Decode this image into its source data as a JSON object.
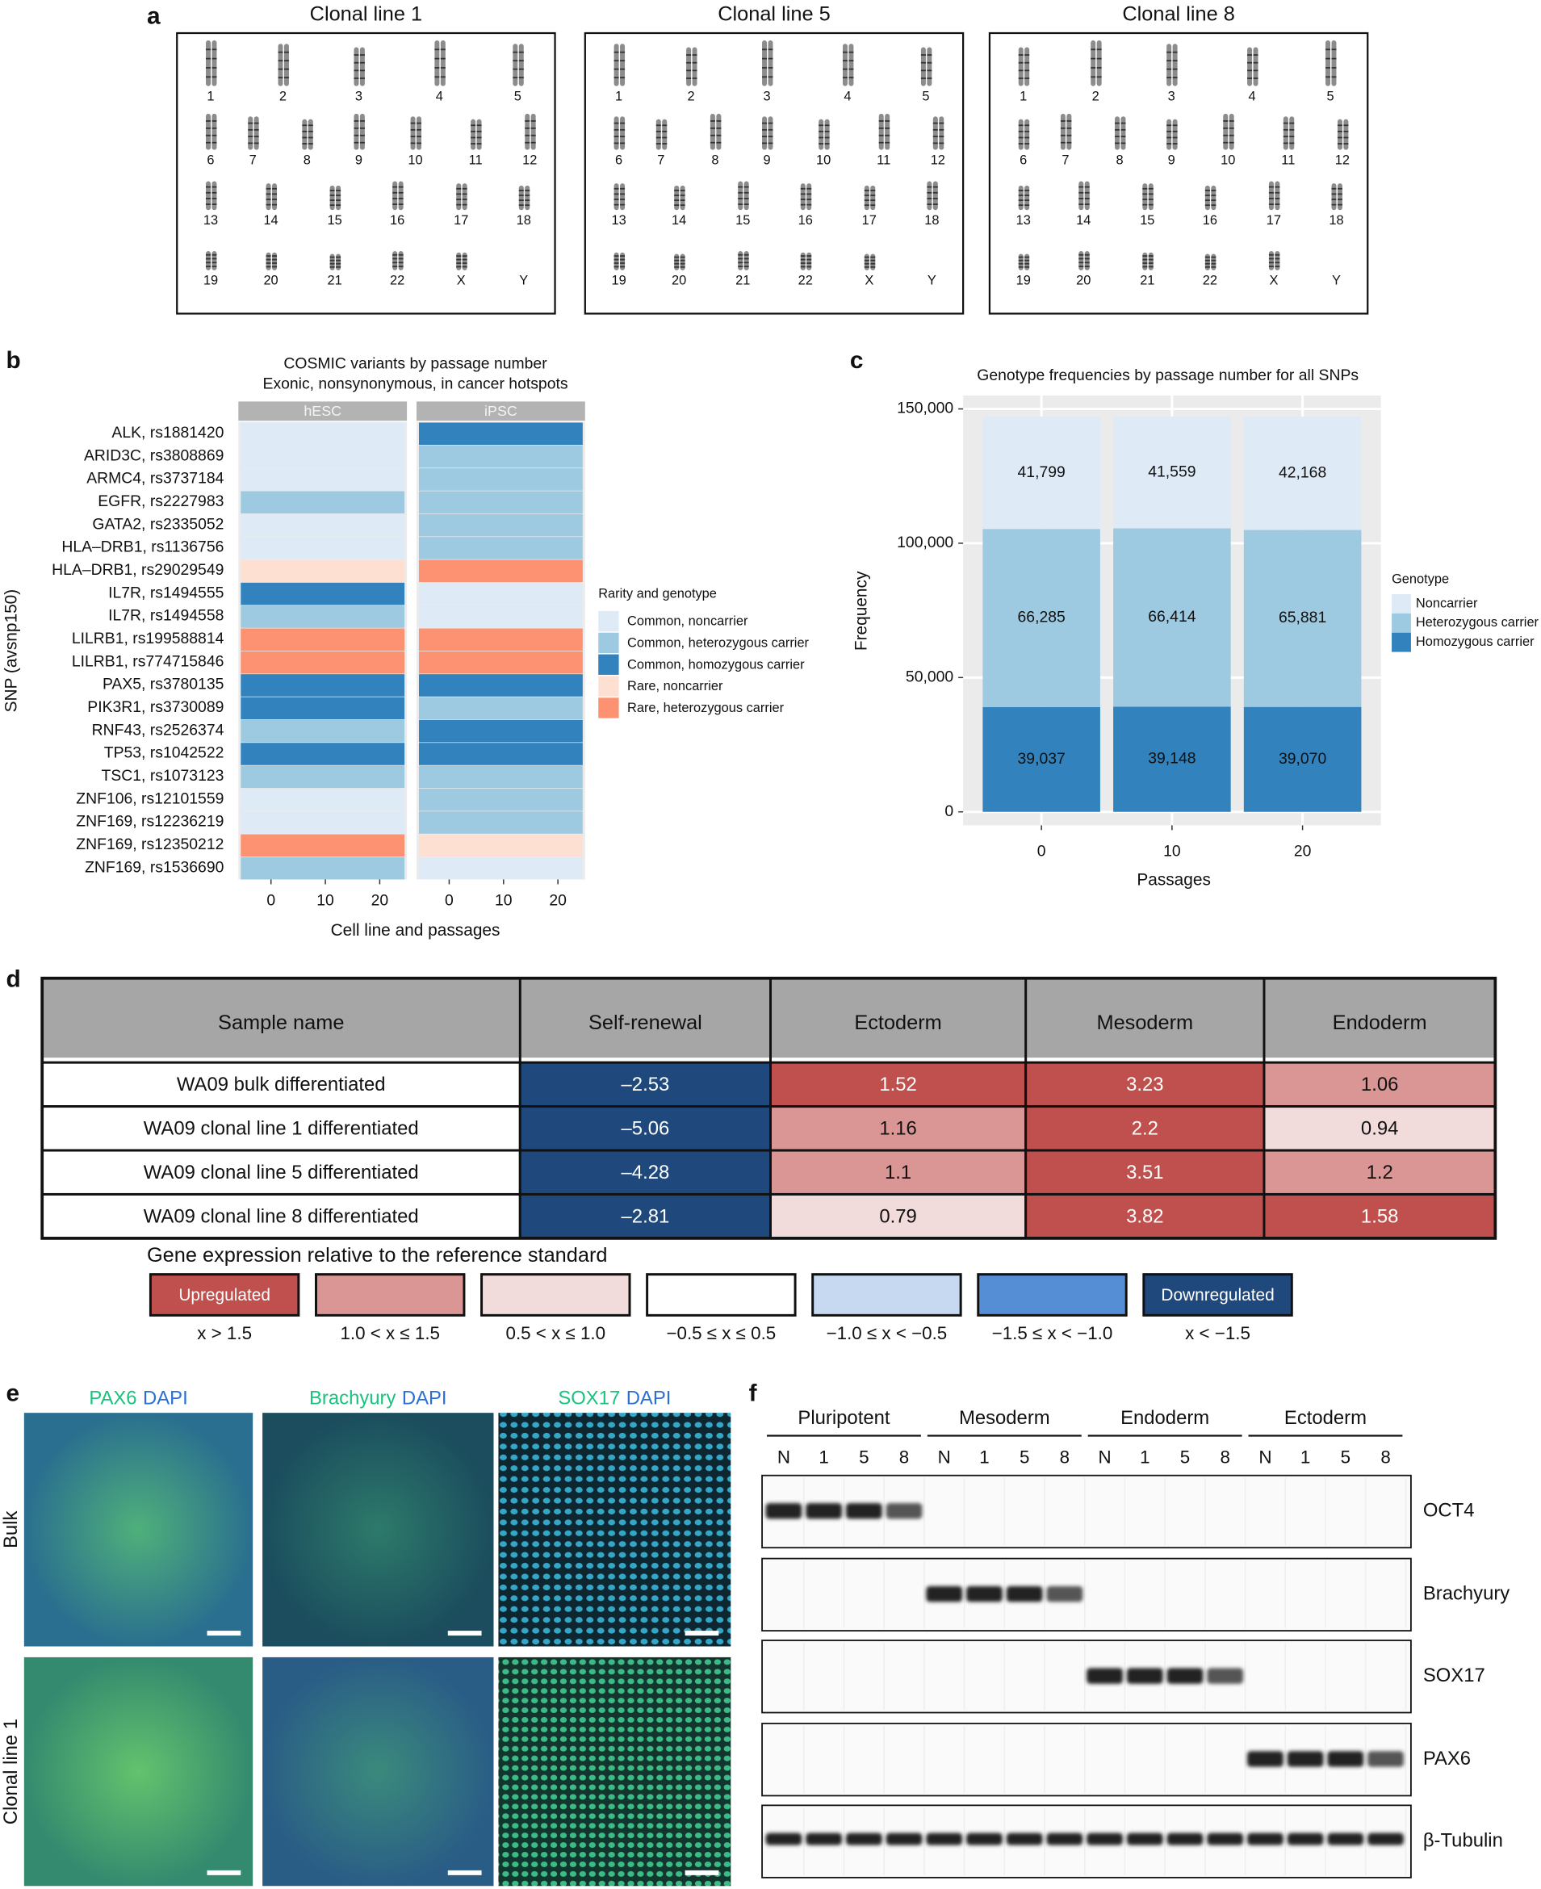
{
  "panel_labels": [
    "a",
    "b",
    "c",
    "d",
    "e",
    "f"
  ],
  "karyotypes": {
    "titles": [
      "Clonal line 1",
      "Clonal line 5",
      "Clonal line 8"
    ],
    "chromosomes": [
      "1",
      "2",
      "3",
      "4",
      "5",
      "6",
      "7",
      "8",
      "9",
      "10",
      "11",
      "12",
      "13",
      "14",
      "15",
      "16",
      "17",
      "18",
      "19",
      "20",
      "21",
      "22",
      "X",
      "Y"
    ]
  },
  "chart_data": [
    {
      "type": "heatmap",
      "title": "COSMIC variants by passage number",
      "subtitle": "Exonic, nonsynonymous, in cancer hotspots",
      "x_label": "Cell line and passages",
      "y_label": "SNP (avsnp150)",
      "categories": [
        "ALK, rs1881420",
        "ARID3C, rs3808869",
        "ARMC4, rs3737184",
        "EGFR, rs2227983",
        "GATA2, rs2335052",
        "HLA–DRB1, rs1136756",
        "HLA–DRB1, rs29029549",
        "IL7R, rs1494555",
        "IL7R, rs1494558",
        "LILRB1, rs199588814",
        "LILRB1, rs774715846",
        "PAX5, rs3780135",
        "PIK3R1, rs3730089",
        "RNF43, rs2526374",
        "TP53, rs1042522",
        "TSC1, rs1073123",
        "ZNF106, rs12101559",
        "ZNF169, rs12236219",
        "ZNF169, rs12350212",
        "ZNF169, rs1536690"
      ],
      "xlim": [
        -6,
        25
      ],
      "xticks": [
        0,
        10,
        20
      ],
      "legend_title": "Rarity and genotype",
      "legend": [
        {
          "name": "Common, noncarrier",
          "color": "#deebf7"
        },
        {
          "name": "Common, heterozygous carrier",
          "color": "#9ecae1"
        },
        {
          "name": "Common, homozygous carrier",
          "color": "#3182bd"
        },
        {
          "name": "Rare, noncarrier",
          "color": "#fde0d2"
        },
        {
          "name": "Rare, heterozygous carrier",
          "color": "#fc9272"
        }
      ],
      "series": [
        {
          "name": "hESC",
          "values": [
            0,
            0,
            0,
            1,
            0,
            0,
            3,
            2,
            1,
            4,
            4,
            2,
            2,
            1,
            2,
            1,
            0,
            0,
            4,
            1
          ]
        },
        {
          "name": "iPSC",
          "values": [
            2,
            1,
            1,
            1,
            1,
            1,
            4,
            0,
            0,
            4,
            4,
            2,
            1,
            2,
            2,
            1,
            1,
            1,
            3,
            0
          ]
        }
      ]
    },
    {
      "type": "stacked_bar",
      "title": "Genotype frequencies by passage number for all SNPs",
      "x_label": "Passages",
      "y_label": "Frequency",
      "categories": [
        "0",
        "10",
        "20"
      ],
      "ylim": [
        -5000,
        155000
      ],
      "yticks": [
        0,
        {
          "value": 50000,
          "label": "50,000"
        },
        {
          "value": 100000,
          "label": "100,000"
        },
        {
          "value": 150000,
          "label": "150,000"
        }
      ],
      "grid": true,
      "legend_title": "Genotype",
      "series": [
        {
          "name": "Noncarrier",
          "color": "#deebf7",
          "values": [
            41799,
            41559,
            42168
          ],
          "value_labels": [
            "41,799",
            "41,559",
            "42,168"
          ]
        },
        {
          "name": "Heterozygous carrier",
          "color": "#9ecae1",
          "values": [
            66285,
            66414,
            65881
          ],
          "value_labels": [
            "66,285",
            "66,414",
            "65,881"
          ]
        },
        {
          "name": "Homozygous carrier",
          "color": "#3182bd",
          "values": [
            39037,
            39148,
            39070
          ],
          "value_labels": [
            "39,037",
            "39,148",
            "39,070"
          ]
        }
      ]
    }
  ],
  "table": {
    "header": [
      "Sample name",
      "Self-renewal",
      "Ectoderm",
      "Mesoderm",
      "Endoderm"
    ],
    "rows": [
      [
        "WA09 bulk differentiated",
        "–2.53",
        "1.52",
        "3.23",
        "1.06"
      ],
      [
        "WA09 clonal line 1 differentiated",
        "–5.06",
        "1.16",
        "2.2",
        "0.94"
      ],
      [
        "WA09 clonal line 5 differentiated",
        "–4.28",
        "1.1",
        "3.51",
        "1.2"
      ],
      [
        "WA09 clonal line 8 differentiated",
        "–2.81",
        "0.79",
        "3.82",
        "1.58"
      ]
    ],
    "cell_levels": [
      [
        6,
        0,
        0,
        1
      ],
      [
        6,
        1,
        0,
        2
      ],
      [
        6,
        1,
        0,
        1
      ],
      [
        6,
        2,
        0,
        0
      ]
    ]
  },
  "table_legend": {
    "title": "Gene expression relative to the reference standard",
    "items": [
      {
        "label": "Upregulated",
        "range": "x > 1.5",
        "color": "#c0504d"
      },
      {
        "range": "1.0 < x ≤ 1.5",
        "color": "#d99694"
      },
      {
        "range": "0.5 < x ≤ 1.0",
        "color": "#f2dcdb"
      },
      {
        "range": "−0.5 ≤ x ≤ 0.5",
        "color": "#ffffff"
      },
      {
        "range": "−1.0 ≤ x < −0.5",
        "color": "#c6d9f1"
      },
      {
        "range": "−1.5 ≤ x < −1.0",
        "color": "#558ed5"
      },
      {
        "label": "Downregulated",
        "range": "x < −1.5",
        "color": "#1f497d"
      }
    ]
  },
  "images": {
    "columns": [
      {
        "stain": "PAX6",
        "counter": "DAPI"
      },
      {
        "stain": "Brachyury",
        "counter": "DAPI"
      },
      {
        "stain": "SOX17",
        "counter": "DAPI"
      }
    ],
    "rows": [
      "Bulk",
      "Clonal line 1"
    ]
  },
  "blot": {
    "groups": [
      "Pluripotent",
      "Mesoderm",
      "Endoderm",
      "Ectoderm"
    ],
    "lanes": [
      "N",
      "1",
      "5",
      "8"
    ],
    "proteins": [
      "OCT4",
      "Brachyury",
      "SOX17",
      "PAX6",
      "β-Tubulin"
    ]
  }
}
